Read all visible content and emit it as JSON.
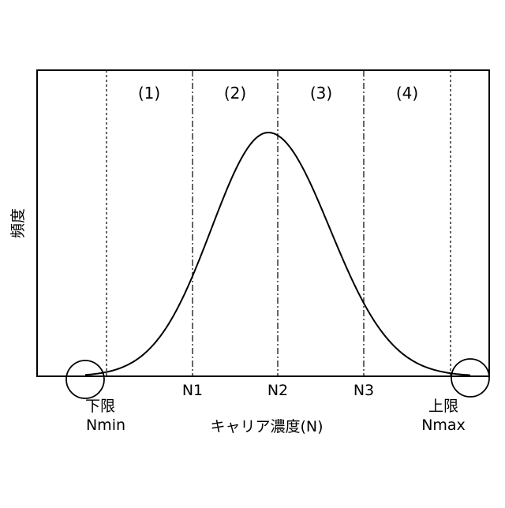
{
  "y_axis_label": "頻度",
  "x_axis_label": "キャリア濃度(N)",
  "regions": [
    "(1)",
    "(2)",
    "(3)",
    "(4)"
  ],
  "thresholds": [
    {
      "label": "N1"
    },
    {
      "label": "N2"
    },
    {
      "label": "N3"
    }
  ],
  "lower_limit": {
    "title": "下限",
    "symbol": "Nmin"
  },
  "upper_limit": {
    "title": "上限",
    "symbol": "Nmax"
  },
  "curve_shape": "bell-shaped distribution peaking near N2",
  "stroke_color": "#000000"
}
